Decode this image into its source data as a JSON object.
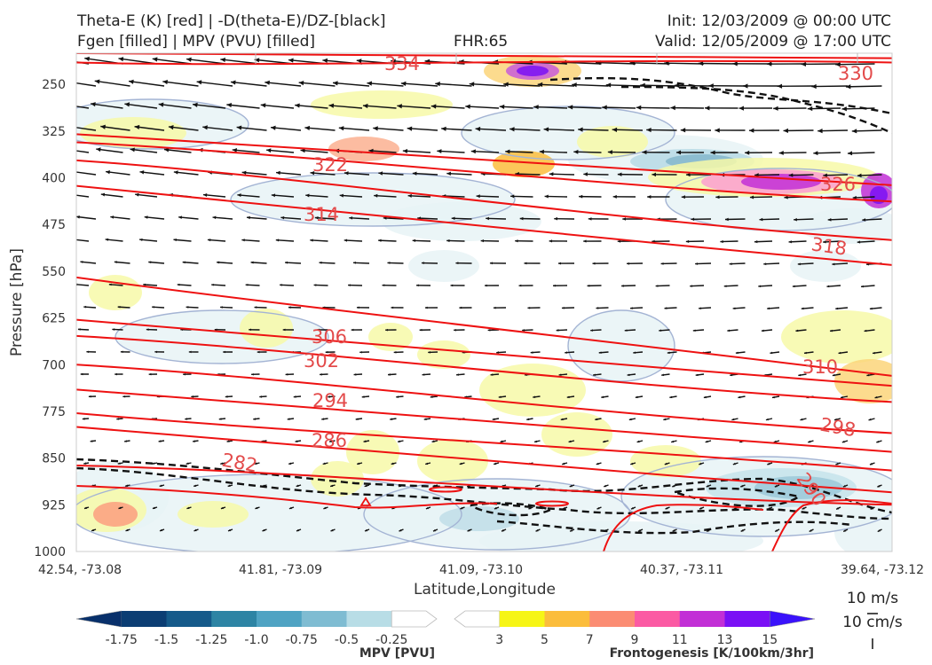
{
  "header": {
    "title_left_1": "Theta-E (K) [red] | -D(theta-E)/DZ-[black]",
    "title_left_2": "Fgen [filled] | MPV (PVU) [filled]",
    "fhr": "FHR:65",
    "init": "Init: 12/03/2009 @ 00:00 UTC",
    "valid": "Valid: 12/05/2009 @ 17:00 UTC"
  },
  "chart_data": {
    "type": "cross-section",
    "xlabel": "Latitude,Longitude",
    "ylabel": "Pressure [hPa]",
    "x_ticks": [
      "42.54, -73.08",
      "41.81, -73.09",
      "41.09, -73.10",
      "40.37, -73.11",
      "39.64, -73.12"
    ],
    "y_ticks": [
      250,
      325,
      400,
      475,
      550,
      625,
      700,
      775,
      850,
      925,
      1000
    ],
    "ylim": [
      1000,
      200
    ],
    "theta_e_contours": [
      {
        "label": "334",
        "p0": 200,
        "p1": 208
      },
      {
        "label": "330",
        "p0": 215,
        "p1": 215
      },
      {
        "label": "326",
        "p0": 330,
        "p1": 412
      },
      {
        "label": "322",
        "p0": 343,
        "p1": 438
      },
      {
        "label": "318",
        "p0": 372,
        "p1": 500
      },
      {
        "label": "314",
        "p0": 413,
        "p1": 540
      },
      {
        "label": "310",
        "p0": 560,
        "p1": 718
      },
      {
        "label": "306",
        "p0": 628,
        "p1": 734
      },
      {
        "label": "302",
        "p0": 654,
        "p1": 760
      },
      {
        "label": "298",
        "p0": 700,
        "p1": 810
      },
      {
        "label": "294",
        "p0": 740,
        "p1": 840
      },
      {
        "label": "290",
        "p0": 778,
        "p1": 870
      },
      {
        "label": "286",
        "p0": 800,
        "p1": 905
      },
      {
        "label": "282",
        "p0": 862,
        "p1": 925
      }
    ],
    "mpv_colorbar": {
      "title": "MPV [PVU]",
      "ticks": [
        "-1.75",
        "-1.5",
        "-1.25",
        "-1.0",
        "-0.75",
        "-0.5",
        "-0.25"
      ],
      "colors": [
        "#08306b",
        "#0b3d73",
        "#155a8a",
        "#2d84a4",
        "#4fa3c3",
        "#7fbcd2",
        "#b8dde6",
        "#ffffff"
      ]
    },
    "fgen_colorbar": {
      "title": "Frontogenesis [K/100km/3hr]",
      "ticks": [
        "3",
        "5",
        "7",
        "9",
        "11",
        "13",
        "15"
      ],
      "colors": [
        "#ffffff",
        "#f6f516",
        "#fbbd3c",
        "#fb8c73",
        "#fb5aa3",
        "#c22fd6",
        "#7a10f5",
        "#3a12fb"
      ]
    },
    "vector_reference": {
      "horizontal": "10 m/s",
      "vertical": "10 cm/s"
    }
  }
}
